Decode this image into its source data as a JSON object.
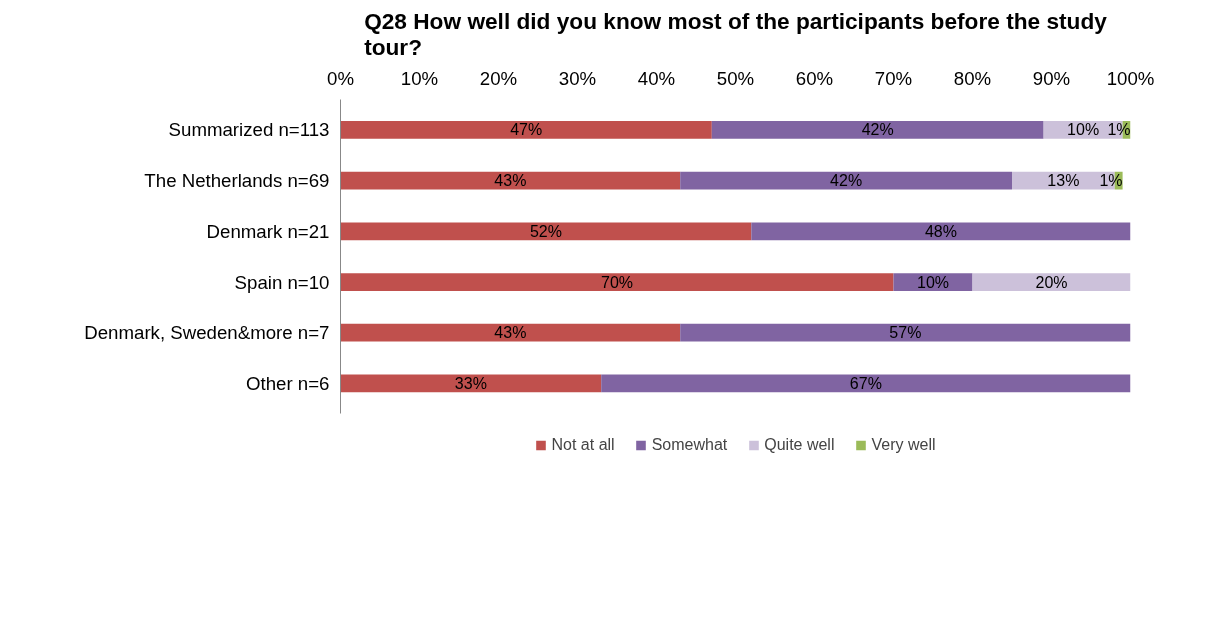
{
  "chart_data": {
    "type": "bar",
    "orientation": "horizontal",
    "stacked": true,
    "title": "Q28 How well did you know most of the participants before the study tour?",
    "categories": [
      "Summarized n=113",
      "The Netherlands n=69",
      "Denmark n=21",
      "Spain n=10",
      "Denmark, Sweden&more n=7",
      "Other n=6"
    ],
    "series": [
      {
        "name": "Not at all",
        "color": "#c0504d",
        "values": [
          47,
          43,
          52,
          70,
          43,
          33
        ],
        "value_labels": [
          "47%",
          "43%",
          "52%",
          "70%",
          "43%",
          "33%"
        ]
      },
      {
        "name": "Somewhat",
        "color": "#8064a2",
        "values": [
          42,
          42,
          48,
          10,
          57,
          67
        ],
        "value_labels": [
          "42%",
          "42%",
          "48%",
          "10%",
          "57%",
          "67%"
        ]
      },
      {
        "name": "Quite well",
        "color": "#ccc1da",
        "values": [
          10,
          13,
          null,
          20,
          null,
          null
        ],
        "value_labels": [
          "10%",
          "13%",
          null,
          "20%",
          null,
          null
        ]
      },
      {
        "name": "Very well",
        "color": "#9bbb59",
        "values": [
          1,
          1,
          null,
          null,
          null,
          null
        ],
        "value_labels": [
          "1%",
          "1%",
          null,
          null,
          null,
          null
        ]
      }
    ],
    "xlim": [
      0,
      100
    ],
    "xticks": [
      {
        "value": 0,
        "label": "0%"
      },
      {
        "value": 10,
        "label": "10%"
      },
      {
        "value": 20,
        "label": "20%"
      },
      {
        "value": 30,
        "label": "30%"
      },
      {
        "value": 40,
        "label": "40%"
      },
      {
        "value": 50,
        "label": "50%"
      },
      {
        "value": 60,
        "label": "60%"
      },
      {
        "value": 70,
        "label": "70%"
      },
      {
        "value": 80,
        "label": "80%"
      },
      {
        "value": 90,
        "label": "90%"
      },
      {
        "value": 100,
        "label": "100%"
      }
    ],
    "grid": false,
    "legend": "bottom"
  }
}
